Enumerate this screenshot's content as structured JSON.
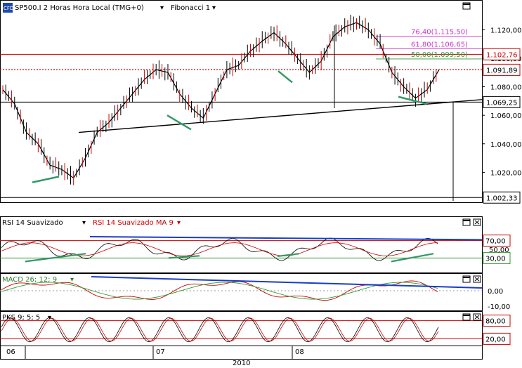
{
  "window": {
    "instrument_title": "SP500.I 2 Horas Hora Local (TMG+0)",
    "fib_menu": "Fibonacci 1",
    "logo_text": "CFD"
  },
  "price_panel": {
    "yaxis_ticks": [
      "1.120,00",
      "1.100,00",
      "1.080,00",
      "1.060,00",
      "1.040,00",
      "1.020,00"
    ],
    "levels": [
      {
        "label": "1.102,76",
        "value": 1102.76,
        "style": "solid",
        "color": "#cc0000"
      },
      {
        "label": "1.091,89",
        "value": 1091.89,
        "style": "dotted",
        "color": "#cc0000"
      },
      {
        "label": "1.069,25",
        "value": 1069.25,
        "style": "solid",
        "color": "#000000"
      },
      {
        "label": "1.002,33",
        "value": 1002.33,
        "style": "solid",
        "color": "#000000"
      }
    ],
    "fibonacci": [
      {
        "label": "76,40(1.115,50)",
        "value": 1115.5,
        "color": "#cc33cc"
      },
      {
        "label": "61,80(1.106,65)",
        "value": 1106.65,
        "color": "#cc33cc"
      },
      {
        "label": "50,00(1.099,50)",
        "value": 1099.5,
        "color": "#339933"
      }
    ]
  },
  "rsi_panel": {
    "label_a": "RSI 14 Suavizado",
    "label_b": "RSI 14 Suavizado MA 9",
    "levels": [
      {
        "label": "70,00",
        "value": 70
      },
      {
        "label": "30,00",
        "value": 30
      }
    ],
    "mid_tick": "50,00"
  },
  "macd_panel": {
    "label": "MACD 26; 12; 9",
    "ticks": [
      "0,00",
      "-10,00"
    ]
  },
  "pks_panel": {
    "label": "PKS 9; 5; 5",
    "levels": [
      {
        "label": "80,00",
        "value": 80
      },
      {
        "label": "20,00",
        "value": 20
      }
    ]
  },
  "time_axis": {
    "months": [
      "06",
      "07",
      "08"
    ],
    "year": "2010"
  },
  "chart_data": {
    "type": "line",
    "series": [
      {
        "name": "",
        "x": [
          0,
          4,
          8,
          12,
          16,
          20,
          24,
          28,
          32,
          36,
          40,
          44,
          48,
          52,
          56,
          60,
          64,
          68,
          72,
          76,
          80,
          84,
          88,
          92,
          96,
          100,
          104,
          108,
          112,
          116,
          120,
          124,
          128,
          132,
          136,
          140,
          144,
          148
        ],
        "values": [
          1078,
          1068,
          1048,
          1040,
          1025,
          1022,
          1016,
          1030,
          1048,
          1055,
          1065,
          1075,
          1085,
          1092,
          1090,
          1075,
          1065,
          1058,
          1075,
          1092,
          1095,
          1105,
          1112,
          1118,
          1110,
          1100,
          1090,
          1098,
          1115,
          1122,
          1125,
          1120,
          1110,
          1090,
          1080,
          1072,
          1078,
          1092
        ]
      }
    ],
    "ylim": [
      1000,
      1130
    ],
    "xlabel": "",
    "ylabel": "",
    "title": ""
  }
}
